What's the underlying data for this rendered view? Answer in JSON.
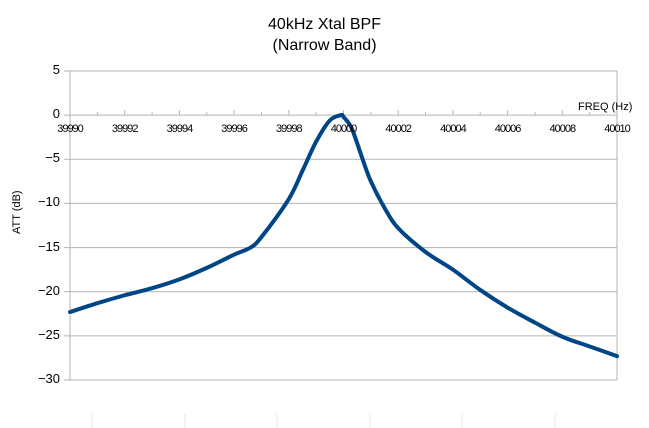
{
  "chart": {
    "title_line1": "40kHz Xtal BPF",
    "title_line2": "(Narrow Band)",
    "xlabel": "FREQ  (Hz)",
    "ylabel": "ATT  (dB)",
    "line_color": "#004586",
    "grid_color": "#b3b3b3"
  },
  "chart_data": {
    "type": "line",
    "title": "40kHz Xtal BPF (Narrow Band)",
    "xlabel": "FREQ (Hz)",
    "ylabel": "ATT (dB)",
    "xlim": [
      39990,
      40010
    ],
    "ylim": [
      -30,
      5
    ],
    "x_ticks": [
      "39990",
      "39992",
      "39994",
      "39996",
      "39998",
      "40000",
      "40002",
      "40004",
      "40006",
      "40008",
      "40010"
    ],
    "y_ticks": [
      "5",
      "0",
      "−5",
      "−10",
      "−15",
      "−20",
      "−25",
      "−30"
    ],
    "grid": true,
    "legend": null,
    "series": [
      {
        "name": "ATT",
        "x": [
          39990,
          39991,
          39992,
          39993,
          39994,
          39995,
          39996,
          39996.6,
          39997,
          39998,
          39998.5,
          39999,
          39999.5,
          39999.9,
          40000,
          40000.3,
          40000.7,
          40001,
          40001.5,
          40002,
          40003,
          40004,
          40005,
          40006,
          40007,
          40008,
          40009,
          40010
        ],
        "values": [
          -22.3,
          -21.3,
          -20.4,
          -19.6,
          -18.6,
          -17.3,
          -15.8,
          -15.0,
          -13.8,
          -9.5,
          -6.3,
          -3.0,
          -0.6,
          0.0,
          -0.2,
          -1.5,
          -5.0,
          -7.5,
          -10.5,
          -12.8,
          -15.5,
          -17.5,
          -19.8,
          -21.8,
          -23.5,
          -25.1,
          -26.2,
          -27.3
        ]
      }
    ]
  }
}
